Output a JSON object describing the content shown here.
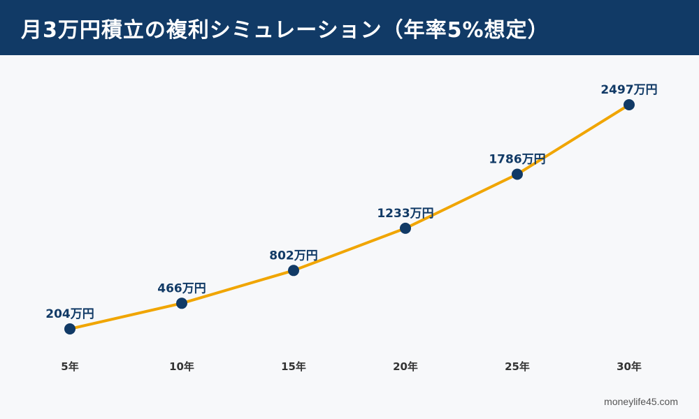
{
  "header": {
    "title": "月3万円積立の複利シミュレーション（年率5%想定）"
  },
  "watermark": "moneylife45.com",
  "colors": {
    "header_bg": "#113a66",
    "line": "#f0a500",
    "point": "#113a66",
    "label": "#113a66",
    "background": "#f7f8fa"
  },
  "chart_data": {
    "type": "line",
    "title": "月3万円積立の複利シミュレーション（年率5%想定）",
    "categories": [
      "5年",
      "10年",
      "15年",
      "20年",
      "25年",
      "30年"
    ],
    "values": [
      204,
      466,
      802,
      1233,
      1786,
      2497
    ],
    "data_labels": [
      "204万円",
      "466万円",
      "802万円",
      "1233万円",
      "1786万円",
      "2497万円"
    ],
    "unit": "万円",
    "xlabel": "",
    "ylabel": "",
    "ylim": [
      0,
      2500
    ],
    "grid": false,
    "legend": "none"
  }
}
